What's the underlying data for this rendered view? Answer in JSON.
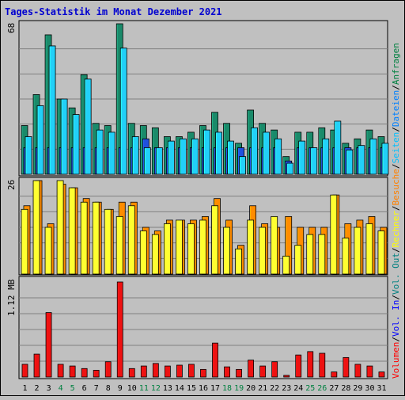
{
  "chart_data": {
    "type": "bar",
    "title": "Tages-Statistik im Monat Dezember 2021",
    "categories": [
      "1",
      "2",
      "3",
      "4",
      "5",
      "6",
      "7",
      "8",
      "9",
      "10",
      "11",
      "12",
      "13",
      "14",
      "15",
      "16",
      "17",
      "18",
      "19",
      "20",
      "21",
      "22",
      "23",
      "24",
      "25",
      "26",
      "27",
      "28",
      "29",
      "30",
      "31"
    ],
    "weekend_days": [
      "4",
      "5",
      "11",
      "12",
      "18",
      "19",
      "25",
      "26"
    ],
    "panels": [
      {
        "name": "top",
        "scale_label": "68",
        "ylim": [
          0,
          68
        ],
        "legend": [
          {
            "label": "Anfragen",
            "color": "#008040"
          },
          {
            "label": "Dateien",
            "color": "#0080ff"
          },
          {
            "label": "Seiten",
            "color": "#00c0ff"
          }
        ],
        "series": [
          {
            "name": "Anfragen",
            "color": "#1a8a6a",
            "values": [
              22,
              36,
              63,
              34,
              30,
              45,
              23,
              22,
              68,
              23,
              22,
              21,
              17,
              17,
              19,
              22,
              28,
              23,
              14,
              29,
              23,
              20,
              8,
              19,
              19,
              21,
              20,
              14,
              16,
              20,
              17
            ]
          },
          {
            "name": "Dateien",
            "color": "#2050e0",
            "values": [
              12,
              12,
              12,
              12,
              12,
              12,
              12,
              12,
              12,
              12,
              16,
              12,
              12,
              12,
              12,
              12,
              12,
              12,
              12,
              12,
              12,
              12,
              6,
              12,
              12,
              12,
              12,
              12,
              12,
              12,
              12
            ]
          },
          {
            "name": "Seiten",
            "color": "#22d0f8",
            "values": [
              17,
              31,
              58,
              34,
              27,
              43,
              20,
              19,
              57,
              17,
              12,
              12,
              15,
              16,
              16,
              20,
              19,
              15,
              8,
              21,
              19,
              16,
              5,
              15,
              12,
              16,
              24,
              11,
              13,
              16,
              14
            ]
          }
        ]
      },
      {
        "name": "middle",
        "scale_label": "26",
        "ylim": [
          0,
          26
        ],
        "legend": [
          {
            "label": "Besuche",
            "color": "#ff8000"
          },
          {
            "label": "Rechner",
            "color": "#ffff00"
          }
        ],
        "series": [
          {
            "name": "Besuche",
            "color": "#ff8c00",
            "values": [
              19,
              26,
              14,
              25,
              24,
              21,
              20,
              18,
              20,
              20,
              13,
              12,
              15,
              15,
              15,
              16,
              21,
              15,
              8,
              19,
              14,
              13,
              16,
              13,
              13,
              13,
              22,
              14,
              15,
              16,
              13
            ]
          },
          {
            "name": "Rechner",
            "color": "#ffff30",
            "values": [
              18,
              26,
              13,
              26,
              24,
              20,
              20,
              18,
              16,
              19,
              12,
              11,
              14,
              15,
              14,
              15,
              19,
              13,
              7,
              15,
              13,
              16,
              5,
              8,
              11,
              11,
              22,
              10,
              13,
              14,
              12
            ]
          }
        ]
      },
      {
        "name": "bottom",
        "scale_label": "1.12 MB",
        "ylim": [
          0,
          1.12
        ],
        "legend": [
          {
            "label": "Volumen",
            "color": "#ff0000"
          },
          {
            "label": "Vol. In",
            "color": "#0000ff"
          },
          {
            "label": "Vol. Out",
            "color": "#008080"
          }
        ],
        "series": [
          {
            "name": "Volumen",
            "color": "#ee1111",
            "values": [
              0.15,
              0.27,
              0.76,
              0.15,
              0.13,
              0.1,
              0.08,
              0.18,
              1.12,
              0.1,
              0.13,
              0.16,
              0.13,
              0.14,
              0.15,
              0.09,
              0.4,
              0.12,
              0.09,
              0.2,
              0.13,
              0.18,
              0.02,
              0.26,
              0.3,
              0.28,
              0.06,
              0.23,
              0.15,
              0.13,
              0.06
            ]
          }
        ]
      }
    ],
    "legend_order": [
      "Volumen",
      "/",
      "Vol. In",
      "/",
      "Vol. Out",
      "/",
      "Rechner",
      "/",
      "Besuche",
      "/",
      "Seiten",
      "/",
      "Dateien",
      "/",
      "Anfragen"
    ]
  }
}
